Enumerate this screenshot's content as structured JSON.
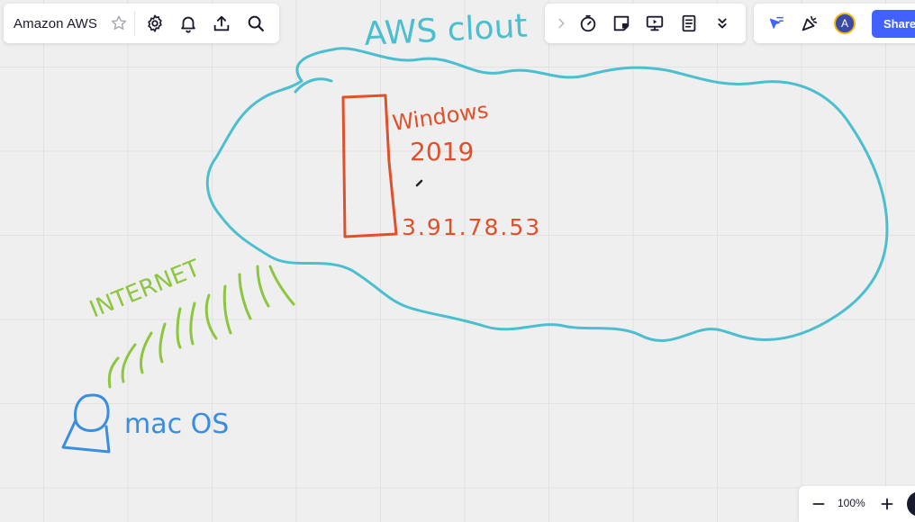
{
  "board": {
    "title": "Amazon AWS"
  },
  "toolbar": {
    "board_icons": [
      "star-icon",
      "gear-icon",
      "bell-icon",
      "upload-icon",
      "search-icon"
    ],
    "tool_icons": [
      "chevron-right-icon",
      "timer-icon",
      "sticky-note-icon",
      "presentation-icon",
      "notes-icon",
      "chevron-double-down-icon"
    ]
  },
  "collab": {
    "avatar_initial": "A",
    "share_label": "Share",
    "accent_color": "#4262ff"
  },
  "canvas": {
    "cloud_label": "AWS clout",
    "server_label_line1": "Windows",
    "server_label_line2": "2019",
    "ip_address": "3.91.78.53",
    "internet_label": "INTERNET",
    "client_label": "mac OS",
    "colors": {
      "cloud": "#4bbfd0",
      "server": "#e0502a",
      "internet": "#8cc63f",
      "client": "#3a8ee0"
    }
  },
  "zoom": {
    "value": "100%"
  }
}
